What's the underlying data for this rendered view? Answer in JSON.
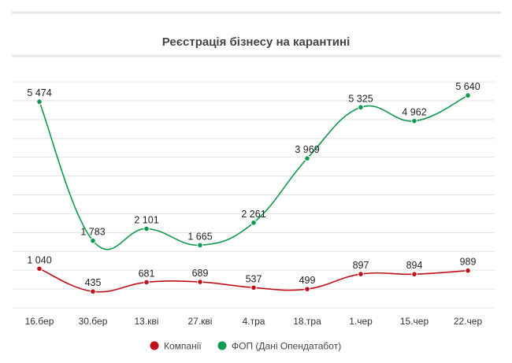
{
  "chart_data": {
    "type": "line",
    "title": "Реєстрація бізнесу на карантині",
    "categories": [
      "16.бер",
      "30.бер",
      "13.кві",
      "27.кві",
      "4.тра",
      "18.тра",
      "1.чер",
      "15.чер",
      "22.чер"
    ],
    "series": [
      {
        "name": "Компанії",
        "color": "#c0101a",
        "values": [
          1040,
          435,
          681,
          689,
          537,
          499,
          897,
          894,
          989
        ],
        "labels": [
          "1 040",
          "435",
          "681",
          "689",
          "537",
          "499",
          "897",
          "894",
          "989"
        ]
      },
      {
        "name": "ФОП (Дані Опендатабот)",
        "color": "#0f9a4f",
        "values": [
          5474,
          1783,
          2101,
          1665,
          2261,
          3969,
          5325,
          4962,
          5640
        ],
        "labels": [
          "5 474",
          "1 783",
          "2 101",
          "1 665",
          "2 261",
          "3 969",
          "5 325",
          "4 962",
          "5 640"
        ]
      }
    ],
    "ylim": [
      0,
      6000
    ],
    "yticks_shown": false,
    "grid": true,
    "legend": "bottom",
    "xlabel": "",
    "ylabel": ""
  }
}
